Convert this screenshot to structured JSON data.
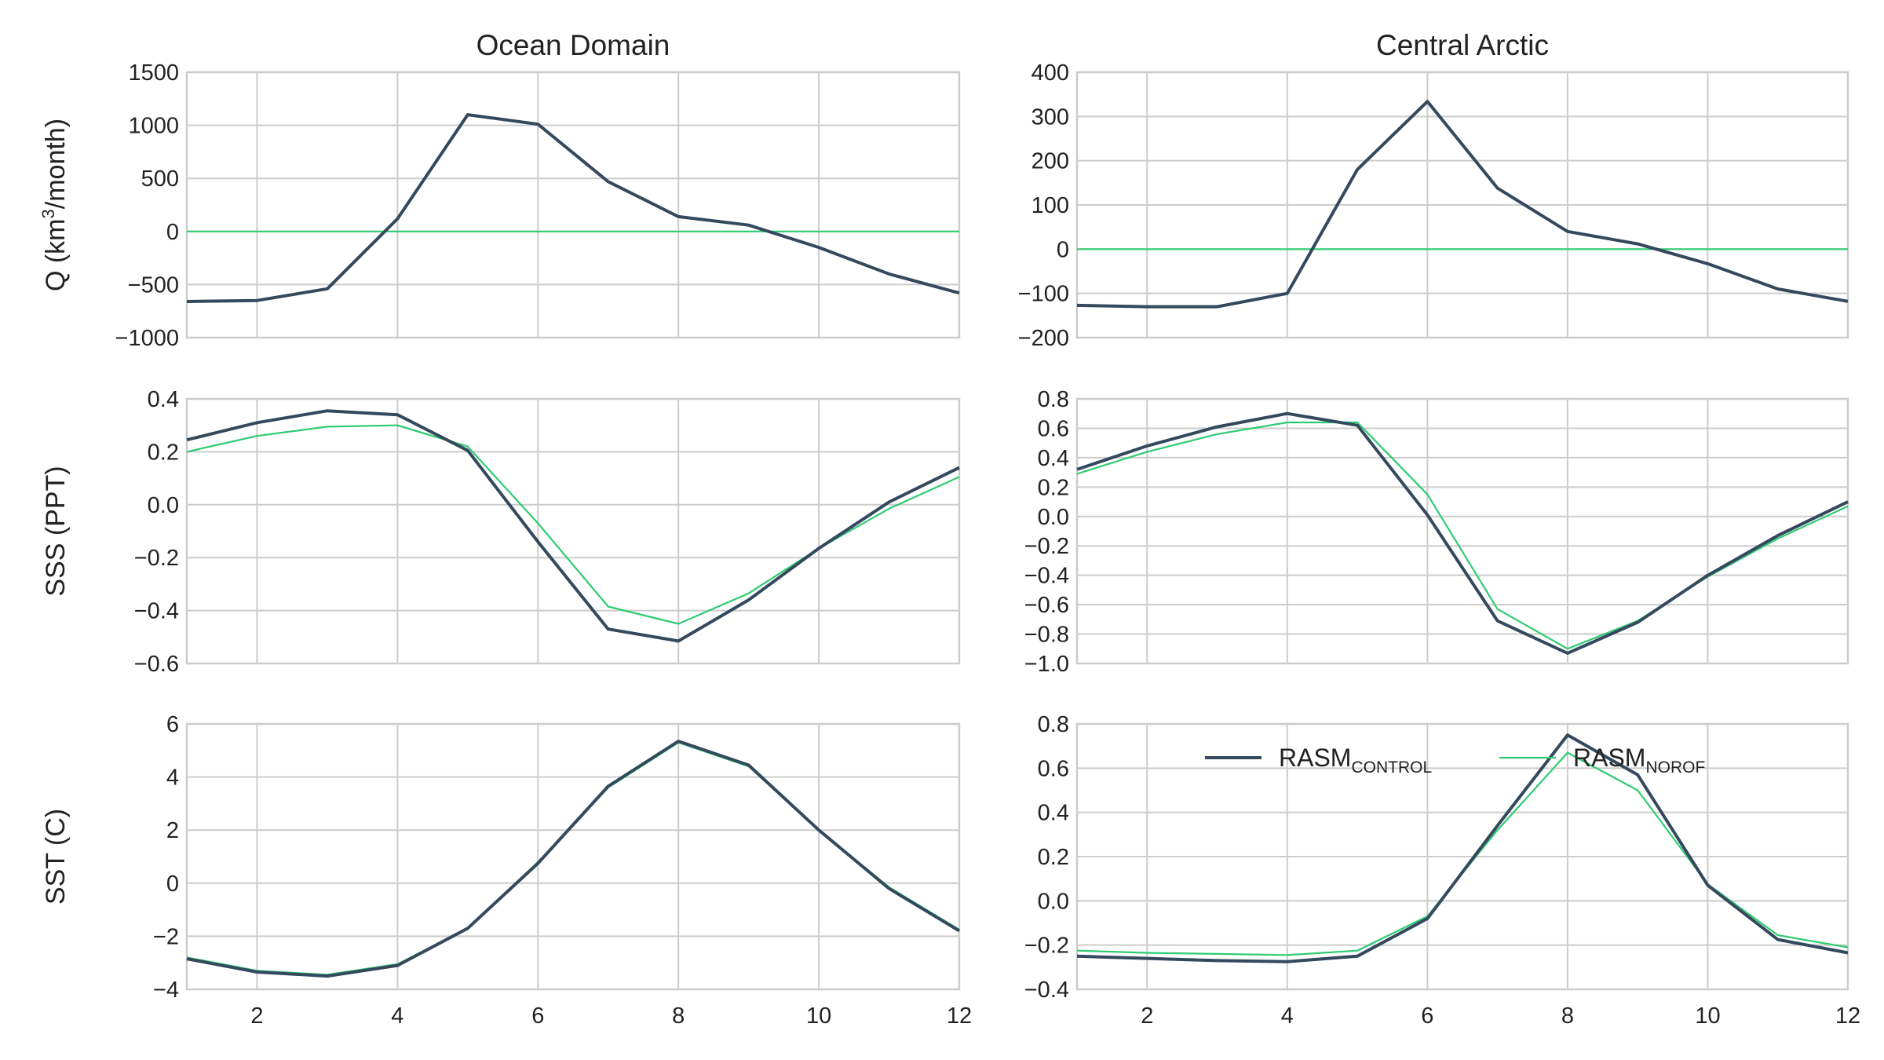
{
  "colors": {
    "control": "#34495e",
    "norof": "#2ecc71",
    "grid": "#cccccc",
    "spine": "#cccccc",
    "background": "#ffffff"
  },
  "legend": {
    "placement": "upper-center (bottom-right panel)",
    "entries": [
      {
        "series": "control",
        "base": "RASM",
        "sub": "CONTROL"
      },
      {
        "series": "norof",
        "base": "RASM",
        "sub": "NOROF"
      }
    ]
  },
  "chart_data": [
    {
      "type": "line",
      "title": "Ocean Domain",
      "ylabel": "Q (km³/month)",
      "ylabel_parts": {
        "pre": "Q (km",
        "sup": "3",
        "post": "/month)"
      },
      "xlim": [
        1,
        12
      ],
      "ylim": [
        -1000,
        1500
      ],
      "xticks": [
        2,
        4,
        6,
        8,
        10,
        12
      ],
      "yticks": [
        -1000,
        -500,
        0,
        500,
        1000,
        1500
      ],
      "ytick_labels": [
        "−1000",
        "−500",
        "0",
        "500",
        "1000",
        "1500"
      ],
      "grid": true,
      "x": [
        1,
        2,
        3,
        4,
        5,
        6,
        7,
        8,
        9,
        10,
        11,
        12
      ],
      "series": [
        {
          "key": "control",
          "values": [
            -660,
            -650,
            -540,
            120,
            1100,
            1010,
            470,
            140,
            60,
            -150,
            -400,
            -580
          ]
        },
        {
          "key": "norof",
          "values": [
            0,
            0,
            0,
            0,
            0,
            0,
            0,
            0,
            0,
            0,
            0,
            0
          ]
        }
      ]
    },
    {
      "type": "line",
      "title": "Central Arctic",
      "ylabel": "",
      "xlim": [
        1,
        12
      ],
      "ylim": [
        -200,
        400
      ],
      "xticks": [
        2,
        4,
        6,
        8,
        10,
        12
      ],
      "yticks": [
        -200,
        -100,
        0,
        100,
        200,
        300,
        400
      ],
      "ytick_labels": [
        "−200",
        "−100",
        "0",
        "100",
        "200",
        "300",
        "400"
      ],
      "grid": true,
      "x": [
        1,
        2,
        3,
        4,
        5,
        6,
        7,
        8,
        9,
        10,
        11,
        12
      ],
      "series": [
        {
          "key": "control",
          "values": [
            -127,
            -130,
            -130,
            -100,
            180,
            334,
            138,
            40,
            12,
            -33,
            -90,
            -118
          ]
        },
        {
          "key": "norof",
          "values": [
            0,
            0,
            0,
            0,
            0,
            0,
            0,
            0,
            0,
            0,
            0,
            0
          ]
        }
      ]
    },
    {
      "type": "line",
      "title": "",
      "ylabel": "SSS (PPT)",
      "xlim": [
        1,
        12
      ],
      "ylim": [
        -0.6,
        0.4
      ],
      "xticks": [
        2,
        4,
        6,
        8,
        10,
        12
      ],
      "yticks": [
        -0.6,
        -0.4,
        -0.2,
        0.0,
        0.2,
        0.4
      ],
      "ytick_labels": [
        "−0.6",
        "−0.4",
        "−0.2",
        "0.0",
        "0.2",
        "0.4"
      ],
      "grid": true,
      "x": [
        1,
        2,
        3,
        4,
        5,
        6,
        7,
        8,
        9,
        10,
        11,
        12
      ],
      "series": [
        {
          "key": "control",
          "values": [
            0.245,
            0.31,
            0.355,
            0.34,
            0.205,
            -0.14,
            -0.47,
            -0.515,
            -0.36,
            -0.165,
            0.01,
            0.14
          ]
        },
        {
          "key": "norof",
          "values": [
            0.2,
            0.26,
            0.295,
            0.3,
            0.22,
            -0.07,
            -0.385,
            -0.45,
            -0.335,
            -0.165,
            -0.015,
            0.105
          ]
        }
      ]
    },
    {
      "type": "line",
      "title": "",
      "ylabel": "",
      "xlim": [
        1,
        12
      ],
      "ylim": [
        -1.0,
        0.8
      ],
      "xticks": [
        2,
        4,
        6,
        8,
        10,
        12
      ],
      "yticks": [
        -1.0,
        -0.8,
        -0.6,
        -0.4,
        -0.2,
        0.0,
        0.2,
        0.4,
        0.6,
        0.8
      ],
      "ytick_labels": [
        "−1.0",
        "−0.8",
        "−0.6",
        "−0.4",
        "−0.2",
        "0.0",
        "0.2",
        "0.4",
        "0.6",
        "0.8"
      ],
      "grid": true,
      "x": [
        1,
        2,
        3,
        4,
        5,
        6,
        7,
        8,
        9,
        10,
        11,
        12
      ],
      "series": [
        {
          "key": "control",
          "values": [
            0.32,
            0.48,
            0.61,
            0.7,
            0.62,
            0.01,
            -0.71,
            -0.93,
            -0.72,
            -0.4,
            -0.13,
            0.1
          ]
        },
        {
          "key": "norof",
          "values": [
            0.29,
            0.44,
            0.56,
            0.64,
            0.64,
            0.15,
            -0.63,
            -0.9,
            -0.71,
            -0.41,
            -0.15,
            0.07
          ]
        }
      ]
    },
    {
      "type": "line",
      "title": "",
      "ylabel": "SST (C)",
      "xlim": [
        1,
        12
      ],
      "ylim": [
        -4,
        6
      ],
      "xticks": [
        2,
        4,
        6,
        8,
        10,
        12
      ],
      "yticks": [
        -4,
        -2,
        0,
        2,
        4,
        6
      ],
      "ytick_labels": [
        "−4",
        "−2",
        "0",
        "2",
        "4",
        "6"
      ],
      "xtick_labels": [
        "2",
        "4",
        "6",
        "8",
        "10",
        "12"
      ],
      "grid": true,
      "x": [
        1,
        2,
        3,
        4,
        5,
        6,
        7,
        8,
        9,
        10,
        11,
        12
      ],
      "series": [
        {
          "key": "control",
          "values": [
            -2.85,
            -3.35,
            -3.5,
            -3.1,
            -1.7,
            0.75,
            3.65,
            5.35,
            4.45,
            2.0,
            -0.2,
            -1.8
          ]
        },
        {
          "key": "norof",
          "values": [
            -2.8,
            -3.3,
            -3.45,
            -3.05,
            -1.7,
            0.8,
            3.6,
            5.3,
            4.4,
            2.0,
            -0.15,
            -1.75
          ]
        }
      ]
    },
    {
      "type": "line",
      "title": "",
      "ylabel": "",
      "xlim": [
        1,
        12
      ],
      "ylim": [
        -0.4,
        0.8
      ],
      "xticks": [
        2,
        4,
        6,
        8,
        10,
        12
      ],
      "yticks": [
        -0.4,
        -0.2,
        0.0,
        0.2,
        0.4,
        0.6,
        0.8
      ],
      "ytick_labels": [
        "−0.4",
        "−0.2",
        "0.0",
        "0.2",
        "0.4",
        "0.6",
        "0.8"
      ],
      "xtick_labels": [
        "2",
        "4",
        "6",
        "8",
        "10",
        "12"
      ],
      "grid": true,
      "x": [
        1,
        2,
        3,
        4,
        5,
        6,
        7,
        8,
        9,
        10,
        11,
        12
      ],
      "series": [
        {
          "key": "control",
          "values": [
            -0.25,
            -0.26,
            -0.27,
            -0.275,
            -0.25,
            -0.08,
            0.34,
            0.75,
            0.57,
            0.07,
            -0.175,
            -0.235
          ]
        },
        {
          "key": "norof",
          "values": [
            -0.225,
            -0.235,
            -0.24,
            -0.245,
            -0.225,
            -0.07,
            0.32,
            0.67,
            0.5,
            0.075,
            -0.155,
            -0.21
          ]
        }
      ]
    }
  ]
}
